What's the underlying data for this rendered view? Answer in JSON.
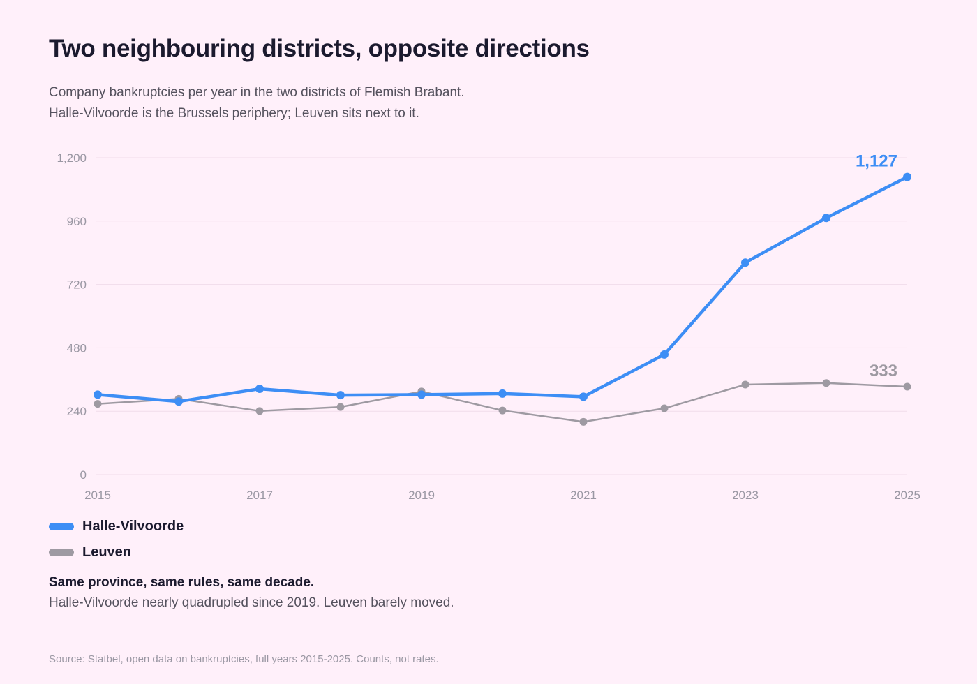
{
  "header": {
    "title": "Two neighbouring districts, opposite directions",
    "subtitle_lines": [
      "Company bankruptcies per year in the two districts of Flemish Brabant.",
      "Halle-Vilvoorde is the Brussels periphery; Leuven sits next to it."
    ]
  },
  "colors": {
    "halle": "#3d8ef5",
    "leuven": "#9e9aa2",
    "grid": "#f1dcea",
    "tick": "#9a97a3"
  },
  "chart_data": {
    "type": "line",
    "x": [
      2015,
      2016,
      2017,
      2018,
      2019,
      2020,
      2021,
      2022,
      2023,
      2024,
      2025
    ],
    "x_tick_labels": [
      "2015",
      "2017",
      "2019",
      "2021",
      "2023",
      "2025"
    ],
    "y_tick_labels": [
      "0",
      "240",
      "480",
      "720",
      "960",
      "1,200"
    ],
    "ylim": [
      0,
      1200
    ],
    "grid": true,
    "series": [
      {
        "name": "Halle-Vilvoorde",
        "values": [
          303,
          277,
          325,
          301,
          303,
          307,
          295,
          455,
          803,
          972,
          1127
        ],
        "end_label": "1,127"
      },
      {
        "name": "Leuven",
        "values": [
          268,
          287,
          241,
          256,
          315,
          243,
          200,
          251,
          341,
          347,
          333
        ],
        "end_label": "333"
      }
    ]
  },
  "note": {
    "headline": "Same province, same rules, same decade.",
    "body": "Halle-Vilvoorde nearly quadrupled since 2019. Leuven barely moved."
  },
  "source": "Source: Statbel, open data on bankruptcies, full years 2015-2025. Counts, not rates."
}
